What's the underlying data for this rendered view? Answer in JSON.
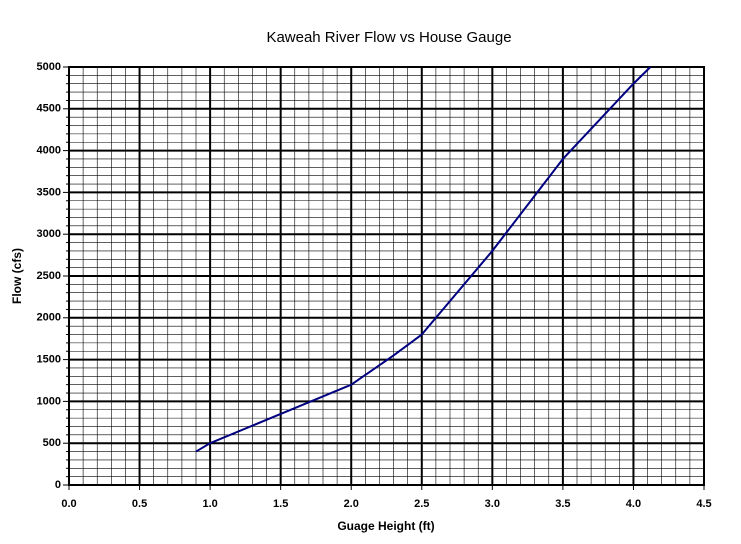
{
  "chart_data": {
    "type": "line",
    "title": "Kaweah River Flow vs House Gauge",
    "x_label": "Guage Height (ft)",
    "y_label": "Flow (cfs)",
    "x": [
      0.9,
      1.0,
      1.5,
      2.0,
      2.3,
      2.5,
      3.0,
      3.5,
      4.0,
      4.12
    ],
    "series": [
      {
        "name": "Flow",
        "color": "#000080",
        "values": [
          400,
          500,
          850,
          1200,
          1550,
          1800,
          2800,
          3900,
          4800,
          5000
        ]
      }
    ],
    "xlim": [
      0,
      4.5
    ],
    "ylim": [
      0,
      5000
    ],
    "xticks": [
      {
        "value": 0,
        "label": "0.0"
      },
      {
        "value": 0.5,
        "label": "0.5"
      },
      {
        "value": 1,
        "label": "1.0"
      },
      {
        "value": 1.5,
        "label": "1.5"
      },
      {
        "value": 2,
        "label": "2.0"
      },
      {
        "value": 2.5,
        "label": "2.5"
      },
      {
        "value": 3,
        "label": "3.0"
      },
      {
        "value": 3.5,
        "label": "3.5"
      },
      {
        "value": 4,
        "label": "4.0"
      },
      {
        "value": 4.5,
        "label": "4.5"
      }
    ],
    "yticks": [
      0,
      500,
      1000,
      1500,
      2000,
      2500,
      3000,
      3500,
      4000,
      4500,
      5000
    ],
    "minor_xticks": [
      0.1,
      0.2,
      0.3,
      0.4,
      0.6,
      0.7,
      0.8,
      0.9,
      1.1,
      1.2,
      1.3,
      1.4,
      1.6,
      1.7,
      1.8,
      1.9,
      2.1,
      2.2,
      2.3,
      2.4,
      2.6,
      2.7,
      2.8,
      2.9,
      3.1,
      3.2,
      3.3,
      3.4,
      3.6,
      3.7,
      3.8,
      3.9,
      4.1,
      4.2,
      4.3,
      4.4
    ],
    "minor_yticks": [
      100,
      200,
      300,
      400,
      600,
      700,
      800,
      900,
      1100,
      1200,
      1300,
      1400,
      1600,
      1700,
      1800,
      1900,
      2100,
      2200,
      2300,
      2400,
      2600,
      2700,
      2800,
      2900,
      3100,
      3200,
      3300,
      3400,
      3600,
      3700,
      3800,
      3900,
      4100,
      4200,
      4300,
      4400,
      4600,
      4700,
      4800,
      4900
    ],
    "grid": true
  }
}
